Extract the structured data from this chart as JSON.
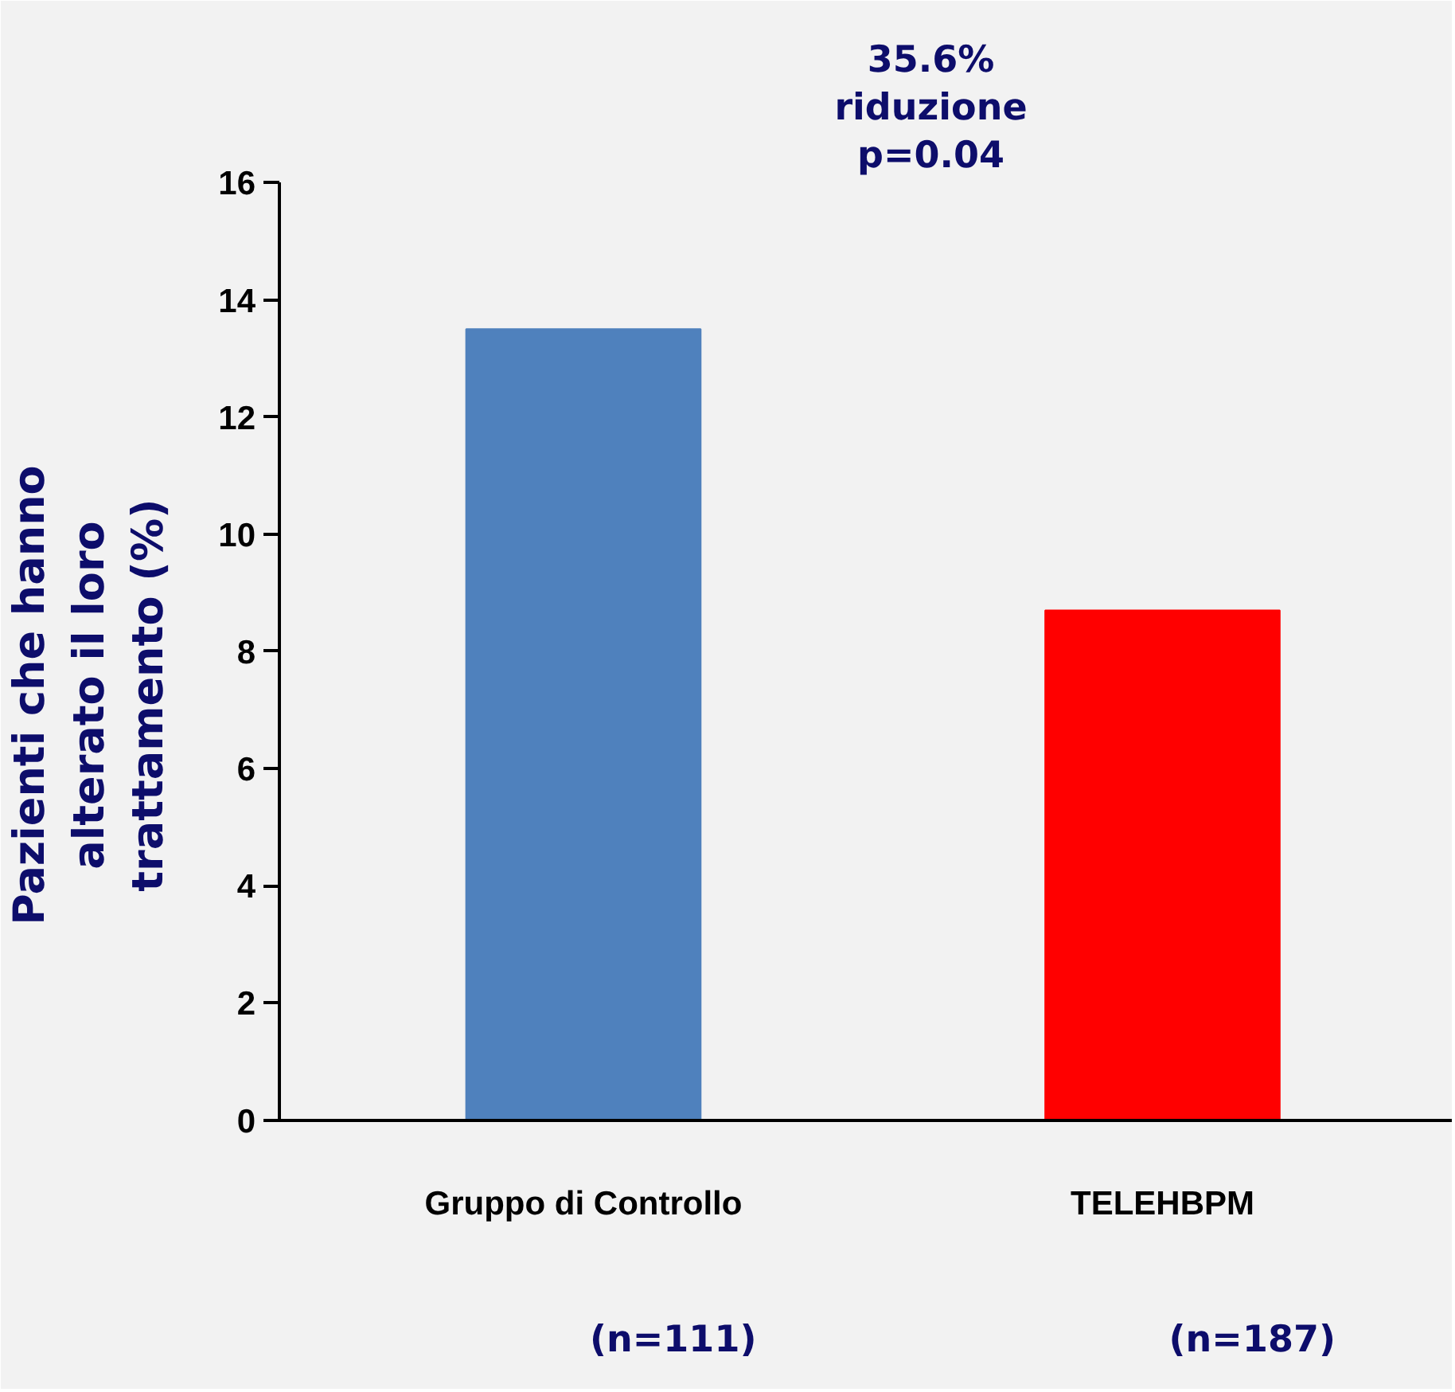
{
  "chart_data": {
    "type": "bar",
    "ylabel": "Pazienti che hanno\nalterato il loro\ntrattamento (%)",
    "categories": [
      "Gruppo di Controllo",
      "TELEHBPM"
    ],
    "values": [
      13.5,
      8.7
    ],
    "colors": [
      "#4f81bd",
      "#ff0000"
    ],
    "ylim": [
      0,
      16
    ],
    "yticks": [
      0,
      2,
      4,
      6,
      8,
      10,
      12,
      14,
      16
    ],
    "grid": false,
    "annotations": [
      "35.6%\nriduzione\np=0.04",
      "(n=111)",
      "(n=187)"
    ]
  }
}
